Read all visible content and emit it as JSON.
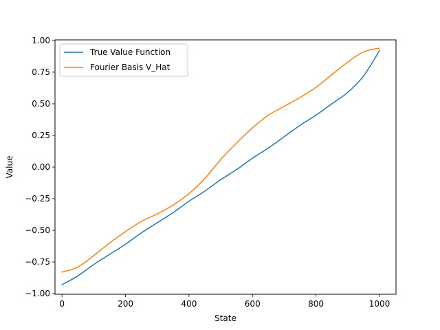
{
  "chart_data": {
    "type": "line",
    "xlabel": "State",
    "ylabel": "Value",
    "xlim": [
      -22,
      1052
    ],
    "ylim": [
      -1.005,
      1.005
    ],
    "xticks": [
      0,
      200,
      400,
      600,
      800,
      1000
    ],
    "yticks": [
      -1.0,
      -0.75,
      -0.5,
      -0.25,
      0.0,
      0.25,
      0.5,
      0.75,
      1.0
    ],
    "xtick_labels": [
      "0",
      "200",
      "400",
      "600",
      "800",
      "1000"
    ],
    "ytick_labels": [
      "−1.00",
      "−0.75",
      "−0.50",
      "−0.25",
      "0.00",
      "0.25",
      "0.50",
      "0.75",
      "1.00"
    ],
    "grid": false,
    "legend_position": "top-left",
    "series": [
      {
        "name": "True Value Function",
        "color": "#1f77b4",
        "x": [
          0,
          50,
          100,
          150,
          200,
          250,
          300,
          350,
          400,
          450,
          500,
          550,
          600,
          650,
          700,
          750,
          800,
          850,
          900,
          950,
          1000
        ],
        "y": [
          -0.93,
          -0.86,
          -0.77,
          -0.69,
          -0.61,
          -0.52,
          -0.44,
          -0.36,
          -0.27,
          -0.19,
          -0.1,
          -0.02,
          0.07,
          0.15,
          0.24,
          0.33,
          0.41,
          0.5,
          0.59,
          0.72,
          0.92
        ]
      },
      {
        "name": "Fourier Basis V_Hat",
        "color": "#ff7f0e",
        "x": [
          0,
          50,
          100,
          150,
          200,
          250,
          300,
          350,
          400,
          450,
          500,
          550,
          600,
          650,
          700,
          750,
          800,
          850,
          900,
          950,
          1000
        ],
        "y": [
          -0.83,
          -0.79,
          -0.7,
          -0.6,
          -0.51,
          -0.43,
          -0.37,
          -0.3,
          -0.21,
          -0.09,
          0.06,
          0.19,
          0.31,
          0.41,
          0.48,
          0.55,
          0.63,
          0.73,
          0.83,
          0.91,
          0.94
        ]
      }
    ]
  }
}
